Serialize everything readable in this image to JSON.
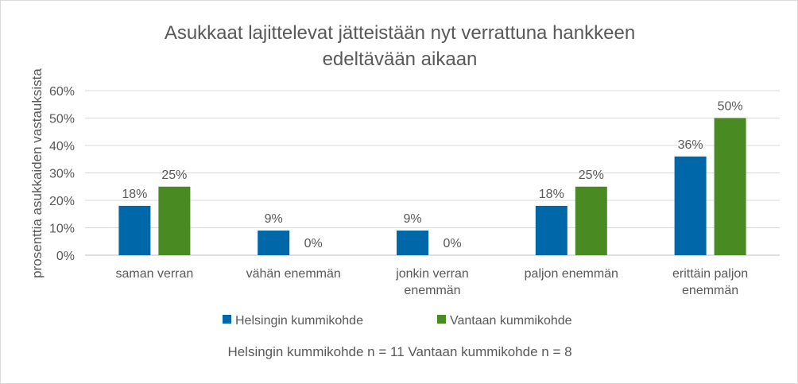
{
  "chart_data": {
    "type": "bar",
    "title": "Asukkaat lajittelevat jätteistään nyt verrattuna hankkeen edeltävään aikaan",
    "title_lines": [
      "Asukkaat lajittelevat jätteistään nyt verrattuna hankkeen",
      "edeltävään aikaan"
    ],
    "ylabel": "prosenttia asukkaiden vastauksista",
    "xlabel": "",
    "ylim": [
      0,
      60
    ],
    "yticks": [
      "0%",
      "10%",
      "20%",
      "30%",
      "40%",
      "50%",
      "60%"
    ],
    "grid": true,
    "legend_position": "bottom",
    "categories": [
      [
        "saman verran"
      ],
      [
        "vähän enemmän"
      ],
      [
        "jonkin verran",
        "enemmän"
      ],
      [
        "paljon enemmän"
      ],
      [
        "erittäin paljon",
        "enemmän"
      ]
    ],
    "series": [
      {
        "name": "Helsingin kummikohde",
        "color": "#0068a8",
        "values": [
          18,
          9,
          9,
          18,
          36
        ],
        "labels": [
          "18%",
          "9%",
          "9%",
          "18%",
          "36%"
        ]
      },
      {
        "name": "Vantaan kummikohde",
        "color": "#4a8a22",
        "values": [
          25,
          0,
          0,
          25,
          50
        ],
        "labels": [
          "25%",
          "0%",
          "0%",
          "25%",
          "50%"
        ]
      }
    ],
    "note": "Helsingin kummikohde n = 11 Vantaan kummikohde n = 8"
  }
}
